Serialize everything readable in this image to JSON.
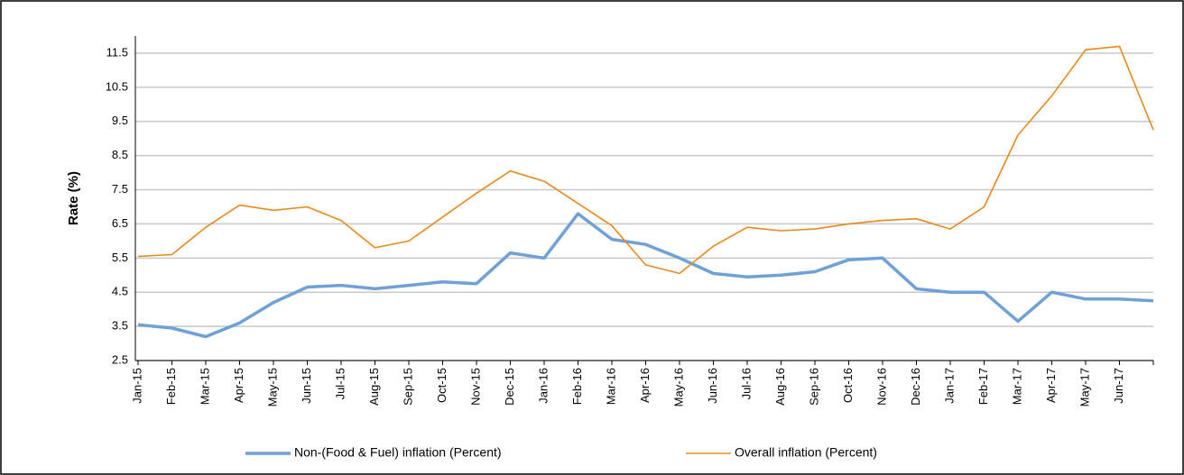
{
  "chart_data": {
    "type": "line",
    "y_label": "Rate (%)",
    "categories": [
      "Jan-15",
      "Feb-15",
      "Mar-15",
      "Apr-15",
      "May-15",
      "Jun-15",
      "Jul-15",
      "Aug-15",
      "Sep-15",
      "Oct-15",
      "Nov-15",
      "Dec-15",
      "Jan-16",
      "Feb-16",
      "Mar-16",
      "Apr-16",
      "May-16",
      "Jun-16",
      "Jul-16",
      "Aug-16",
      "Sep-16",
      "Oct-16",
      "Nov-16",
      "Dec-16",
      "Jan-17",
      "Feb-17",
      "Mar-17",
      "Apr-17",
      "May-17",
      "Jun-17",
      null
    ],
    "series": [
      {
        "name": "Non-(Food & Fuel) inflation (Percent)",
        "color": "#6fa1d9",
        "width": 3.5,
        "values": [
          3.55,
          3.45,
          3.2,
          3.6,
          4.2,
          4.65,
          4.7,
          4.6,
          4.7,
          4.8,
          4.75,
          5.65,
          5.5,
          6.8,
          6.05,
          5.9,
          5.5,
          5.05,
          4.95,
          5.0,
          5.1,
          5.45,
          5.5,
          4.6,
          4.5,
          4.5,
          3.65,
          4.5,
          4.3,
          4.3,
          4.25
        ]
      },
      {
        "name": "Overall inflation (Percent)",
        "color": "#e88a1a",
        "width": 1.6,
        "values": [
          5.55,
          5.6,
          6.4,
          7.05,
          6.9,
          7.0,
          6.6,
          5.8,
          6.0,
          6.7,
          7.4,
          8.05,
          7.75,
          7.1,
          6.45,
          5.3,
          5.05,
          5.85,
          6.4,
          6.3,
          6.35,
          6.5,
          6.6,
          6.65,
          6.35,
          7.0,
          9.1,
          10.25,
          11.6,
          11.7,
          9.25
        ]
      }
    ],
    "ylim": [
      2.5,
      12
    ],
    "yticks": [
      2.5,
      3.5,
      4.5,
      5.5,
      6.5,
      7.5,
      8.5,
      9.5,
      10.5,
      11.5
    ],
    "grid": true
  }
}
